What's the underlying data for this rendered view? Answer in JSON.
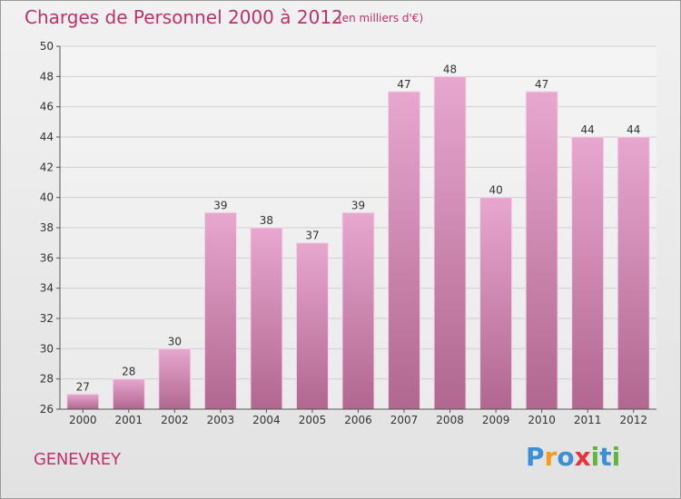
{
  "header": {
    "title": "Charges de Personnel 2000 à 2012",
    "subtitle": "(en milliers d'€)"
  },
  "footer": {
    "commune": "GENEVREY",
    "logo": {
      "text": "Proxiti",
      "letters": [
        {
          "char": "P",
          "color": "#3b8fd6"
        },
        {
          "char": "r",
          "color": "#f39a1f"
        },
        {
          "char": "o",
          "color": "#3b8fd6"
        },
        {
          "char": "x",
          "color": "#e8323c"
        },
        {
          "char": "i",
          "color": "#62b53e"
        },
        {
          "char": "t",
          "color": "#3b8fd6"
        },
        {
          "char": "i",
          "color": "#62b53e"
        }
      ]
    }
  },
  "colors": {
    "text_accent": "#c0306a",
    "bar_top": "#e7a7cf",
    "bar_bottom": "#b1678f",
    "grid": "#cfcfcf"
  },
  "chart_data": {
    "type": "bar",
    "title": "Charges de Personnel 2000 à 2012",
    "subtitle": "(en milliers d'€)",
    "xlabel": "",
    "ylabel": "",
    "categories": [
      "2000",
      "2001",
      "2002",
      "2003",
      "2004",
      "2005",
      "2006",
      "2007",
      "2008",
      "2009",
      "2010",
      "2011",
      "2012"
    ],
    "values": [
      27,
      28,
      30,
      39,
      38,
      37,
      39,
      47,
      48,
      40,
      47,
      44,
      44
    ],
    "data_labels": [
      "27",
      "28",
      "30",
      "39",
      "38",
      "37",
      "39",
      "47",
      "48",
      "40",
      "47",
      "44",
      "44"
    ],
    "ylim": [
      26,
      50
    ],
    "yticks": [
      26,
      28,
      30,
      32,
      34,
      36,
      38,
      40,
      42,
      44,
      46,
      48,
      50
    ],
    "ytick_labels": [
      "26",
      "28",
      "30",
      "32",
      "34",
      "36",
      "38",
      "40",
      "42",
      "44",
      "46",
      "48",
      "50"
    ],
    "grid": true,
    "legend": "none"
  }
}
